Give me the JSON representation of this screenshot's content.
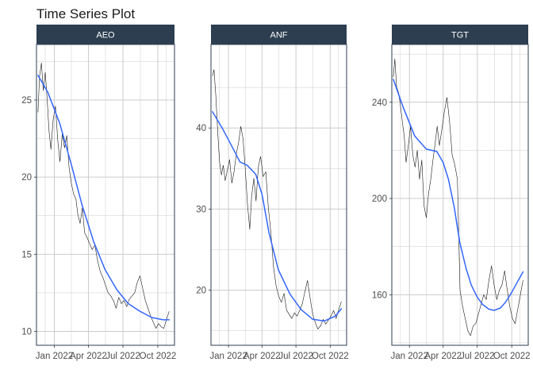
{
  "chart_data": {
    "type": "line",
    "title": "Time Series Plot",
    "xlabel": "",
    "ylabel": "",
    "grid": true,
    "legend": "none",
    "x_range": [
      "2021-11-15",
      "2022-11-14"
    ],
    "x_ticks": [
      "Jan 2022",
      "Apr 2022",
      "Jul 2022",
      "Oct 2022"
    ],
    "colors": {
      "price_line": "#1a1a1a",
      "trend_line": "#3366ff",
      "strip_fill": "#2c3e50",
      "strip_text": "#ffffff",
      "grid": "#cccccc",
      "panel_border": "#2c3e50"
    },
    "panels": [
      {
        "name": "AEO",
        "ylim": [
          9.1,
          28.6
        ],
        "y_ticks": [
          10,
          15,
          20,
          25
        ],
        "price": [
          [
            "2021-11-19",
            24.2
          ],
          [
            "2021-11-23",
            26.5
          ],
          [
            "2021-11-28",
            27.4
          ],
          [
            "2021-12-03",
            25.6
          ],
          [
            "2021-12-08",
            26.8
          ],
          [
            "2021-12-13",
            25.1
          ],
          [
            "2021-12-18",
            23.0
          ],
          [
            "2021-12-23",
            21.8
          ],
          [
            "2021-12-29",
            23.7
          ],
          [
            "2022-01-04",
            24.6
          ],
          [
            "2022-01-10",
            22.4
          ],
          [
            "2022-01-16",
            21.0
          ],
          [
            "2022-01-22",
            22.8
          ],
          [
            "2022-01-28",
            21.9
          ],
          [
            "2022-02-03",
            22.7
          ],
          [
            "2022-02-09",
            20.6
          ],
          [
            "2022-02-15",
            19.6
          ],
          [
            "2022-02-21",
            18.9
          ],
          [
            "2022-02-27",
            18.6
          ],
          [
            "2022-03-04",
            17.6
          ],
          [
            "2022-03-10",
            17.0
          ],
          [
            "2022-03-16",
            18.0
          ],
          [
            "2022-03-22",
            16.4
          ],
          [
            "2022-03-28",
            16.1
          ],
          [
            "2022-04-04",
            15.7
          ],
          [
            "2022-04-11",
            15.3
          ],
          [
            "2022-04-18",
            15.6
          ],
          [
            "2022-04-25",
            14.6
          ],
          [
            "2022-05-02",
            13.9
          ],
          [
            "2022-05-09",
            13.5
          ],
          [
            "2022-05-16",
            13.0
          ],
          [
            "2022-05-23",
            12.5
          ],
          [
            "2022-05-30",
            12.3
          ],
          [
            "2022-06-06",
            12.0
          ],
          [
            "2022-06-13",
            11.5
          ],
          [
            "2022-06-20",
            12.2
          ],
          [
            "2022-06-27",
            11.8
          ],
          [
            "2022-07-04",
            12.0
          ],
          [
            "2022-07-11",
            11.6
          ],
          [
            "2022-07-18",
            12.1
          ],
          [
            "2022-07-25",
            12.3
          ],
          [
            "2022-08-01",
            12.5
          ],
          [
            "2022-08-08",
            13.2
          ],
          [
            "2022-08-15",
            13.6
          ],
          [
            "2022-08-22",
            12.8
          ],
          [
            "2022-08-29",
            12.0
          ],
          [
            "2022-09-05",
            11.5
          ],
          [
            "2022-09-12",
            11.0
          ],
          [
            "2022-09-19",
            10.6
          ],
          [
            "2022-09-26",
            10.2
          ],
          [
            "2022-10-03",
            10.5
          ],
          [
            "2022-10-10",
            10.3
          ],
          [
            "2022-10-17",
            10.2
          ],
          [
            "2022-10-24",
            10.8
          ],
          [
            "2022-10-31",
            11.3
          ]
        ],
        "trend": [
          [
            "2021-11-19",
            26.6
          ],
          [
            "2021-12-15",
            25.5
          ],
          [
            "2022-01-15",
            23.5
          ],
          [
            "2022-02-15",
            20.8
          ],
          [
            "2022-03-15",
            18.2
          ],
          [
            "2022-04-15",
            15.8
          ],
          [
            "2022-05-15",
            14.0
          ],
          [
            "2022-06-15",
            12.7
          ],
          [
            "2022-07-15",
            11.8
          ],
          [
            "2022-08-15",
            11.3
          ],
          [
            "2022-09-15",
            10.9
          ],
          [
            "2022-10-15",
            10.75
          ],
          [
            "2022-10-31",
            10.75
          ]
        ]
      },
      {
        "name": "ANF",
        "ylim": [
          13.2,
          50.3
        ],
        "y_ticks": [
          20,
          30,
          40
        ],
        "price": [
          [
            "2021-11-19",
            46.4
          ],
          [
            "2021-11-23",
            47.2
          ],
          [
            "2021-11-28",
            44.0
          ],
          [
            "2021-12-03",
            39.5
          ],
          [
            "2021-12-08",
            35.8
          ],
          [
            "2021-12-13",
            34.2
          ],
          [
            "2021-12-18",
            35.4
          ],
          [
            "2021-12-23",
            33.5
          ],
          [
            "2021-12-29",
            34.8
          ],
          [
            "2022-01-04",
            36.1
          ],
          [
            "2022-01-10",
            33.2
          ],
          [
            "2022-01-16",
            34.6
          ],
          [
            "2022-01-22",
            36.8
          ],
          [
            "2022-01-28",
            38.2
          ],
          [
            "2022-02-03",
            40.2
          ],
          [
            "2022-02-09",
            38.7
          ],
          [
            "2022-02-15",
            35.0
          ],
          [
            "2022-02-21",
            30.6
          ],
          [
            "2022-02-27",
            27.5
          ],
          [
            "2022-03-04",
            31.5
          ],
          [
            "2022-03-10",
            33.8
          ],
          [
            "2022-03-16",
            31.0
          ],
          [
            "2022-03-22",
            35.2
          ],
          [
            "2022-03-28",
            36.5
          ],
          [
            "2022-04-04",
            34.0
          ],
          [
            "2022-04-11",
            34.6
          ],
          [
            "2022-04-18",
            30.2
          ],
          [
            "2022-04-25",
            27.0
          ],
          [
            "2022-05-02",
            22.8
          ],
          [
            "2022-05-09",
            20.5
          ],
          [
            "2022-05-16",
            19.2
          ],
          [
            "2022-05-23",
            18.5
          ],
          [
            "2022-05-30",
            19.6
          ],
          [
            "2022-06-06",
            17.5
          ],
          [
            "2022-06-13",
            17.0
          ],
          [
            "2022-06-20",
            16.5
          ],
          [
            "2022-06-27",
            17.2
          ],
          [
            "2022-07-04",
            16.8
          ],
          [
            "2022-07-11",
            17.5
          ],
          [
            "2022-07-18",
            18.3
          ],
          [
            "2022-07-25",
            19.8
          ],
          [
            "2022-08-01",
            21.2
          ],
          [
            "2022-08-08",
            19.0
          ],
          [
            "2022-08-15",
            17.0
          ],
          [
            "2022-08-22",
            16.0
          ],
          [
            "2022-08-29",
            15.2
          ],
          [
            "2022-09-05",
            15.6
          ],
          [
            "2022-09-12",
            16.4
          ],
          [
            "2022-09-19",
            15.8
          ],
          [
            "2022-09-26",
            16.3
          ],
          [
            "2022-10-03",
            16.8
          ],
          [
            "2022-10-10",
            17.5
          ],
          [
            "2022-10-17",
            16.5
          ],
          [
            "2022-10-24",
            17.6
          ],
          [
            "2022-10-31",
            18.6
          ]
        ],
        "trend": [
          [
            "2021-11-19",
            42.0
          ],
          [
            "2021-12-15",
            40.0
          ],
          [
            "2022-01-15",
            37.3
          ],
          [
            "2022-02-01",
            35.8
          ],
          [
            "2022-02-20",
            35.4
          ],
          [
            "2022-03-15",
            34.3
          ],
          [
            "2022-04-01",
            31.8
          ],
          [
            "2022-04-20",
            27.0
          ],
          [
            "2022-05-15",
            22.5
          ],
          [
            "2022-06-15",
            19.5
          ],
          [
            "2022-07-15",
            17.6
          ],
          [
            "2022-08-15",
            16.4
          ],
          [
            "2022-09-15",
            16.2
          ],
          [
            "2022-10-15",
            16.8
          ],
          [
            "2022-10-31",
            17.7
          ]
        ]
      },
      {
        "name": "TGT",
        "ylim": [
          139,
          264
        ],
        "y_ticks": [
          160,
          200,
          240
        ],
        "price": [
          [
            "2021-11-19",
            250.5
          ],
          [
            "2021-11-23",
            258.0
          ],
          [
            "2021-11-28",
            246.3
          ],
          [
            "2021-12-03",
            244.0
          ],
          [
            "2021-12-08",
            238.5
          ],
          [
            "2021-12-13",
            232.0
          ],
          [
            "2021-12-18",
            226.0
          ],
          [
            "2021-12-23",
            215.0
          ],
          [
            "2021-12-29",
            222.0
          ],
          [
            "2022-01-04",
            230.0
          ],
          [
            "2022-01-10",
            218.0
          ],
          [
            "2022-01-16",
            213.0
          ],
          [
            "2022-01-22",
            220.0
          ],
          [
            "2022-01-28",
            208.0
          ],
          [
            "2022-02-03",
            216.0
          ],
          [
            "2022-02-09",
            197.0
          ],
          [
            "2022-02-15",
            192.0
          ],
          [
            "2022-02-21",
            202.0
          ],
          [
            "2022-02-27",
            208.0
          ],
          [
            "2022-03-04",
            215.0
          ],
          [
            "2022-03-10",
            222.0
          ],
          [
            "2022-03-16",
            230.0
          ],
          [
            "2022-03-22",
            222.0
          ],
          [
            "2022-03-28",
            228.0
          ],
          [
            "2022-04-04",
            236.0
          ],
          [
            "2022-04-11",
            242.0
          ],
          [
            "2022-04-18",
            232.0
          ],
          [
            "2022-04-25",
            218.0
          ],
          [
            "2022-05-02",
            214.0
          ],
          [
            "2022-05-09",
            208.0
          ],
          [
            "2022-05-16",
            162.0
          ],
          [
            "2022-05-23",
            155.0
          ],
          [
            "2022-05-30",
            150.0
          ],
          [
            "2022-06-06",
            145.0
          ],
          [
            "2022-06-13",
            143.0
          ],
          [
            "2022-06-20",
            147.0
          ],
          [
            "2022-06-27",
            148.0
          ],
          [
            "2022-07-04",
            152.0
          ],
          [
            "2022-07-11",
            156.0
          ],
          [
            "2022-07-18",
            160.0
          ],
          [
            "2022-07-25",
            158.0
          ],
          [
            "2022-08-01",
            166.0
          ],
          [
            "2022-08-08",
            172.0
          ],
          [
            "2022-08-15",
            164.0
          ],
          [
            "2022-08-22",
            158.0
          ],
          [
            "2022-08-29",
            162.0
          ],
          [
            "2022-09-05",
            164.0
          ],
          [
            "2022-09-12",
            170.0
          ],
          [
            "2022-09-19",
            162.0
          ],
          [
            "2022-09-26",
            155.0
          ],
          [
            "2022-10-03",
            150.0
          ],
          [
            "2022-10-10",
            148.0
          ],
          [
            "2022-10-17",
            154.0
          ],
          [
            "2022-10-24",
            160.0
          ],
          [
            "2022-10-31",
            166.0
          ]
        ],
        "trend": [
          [
            "2021-11-19",
            249.5
          ],
          [
            "2021-12-15",
            238.0
          ],
          [
            "2022-01-15",
            226.0
          ],
          [
            "2022-02-15",
            220.5
          ],
          [
            "2022-03-15",
            219.5
          ],
          [
            "2022-04-01",
            215.0
          ],
          [
            "2022-04-15",
            208.0
          ],
          [
            "2022-05-01",
            196.0
          ],
          [
            "2022-05-15",
            182.0
          ],
          [
            "2022-06-01",
            171.0
          ],
          [
            "2022-06-15",
            164.0
          ],
          [
            "2022-07-01",
            159.0
          ],
          [
            "2022-07-15",
            156.0
          ],
          [
            "2022-08-01",
            154.0
          ],
          [
            "2022-08-15",
            153.5
          ],
          [
            "2022-09-01",
            154.5
          ],
          [
            "2022-09-15",
            157.0
          ],
          [
            "2022-10-01",
            161.0
          ],
          [
            "2022-10-15",
            165.0
          ],
          [
            "2022-10-31",
            169.5
          ]
        ]
      }
    ]
  }
}
